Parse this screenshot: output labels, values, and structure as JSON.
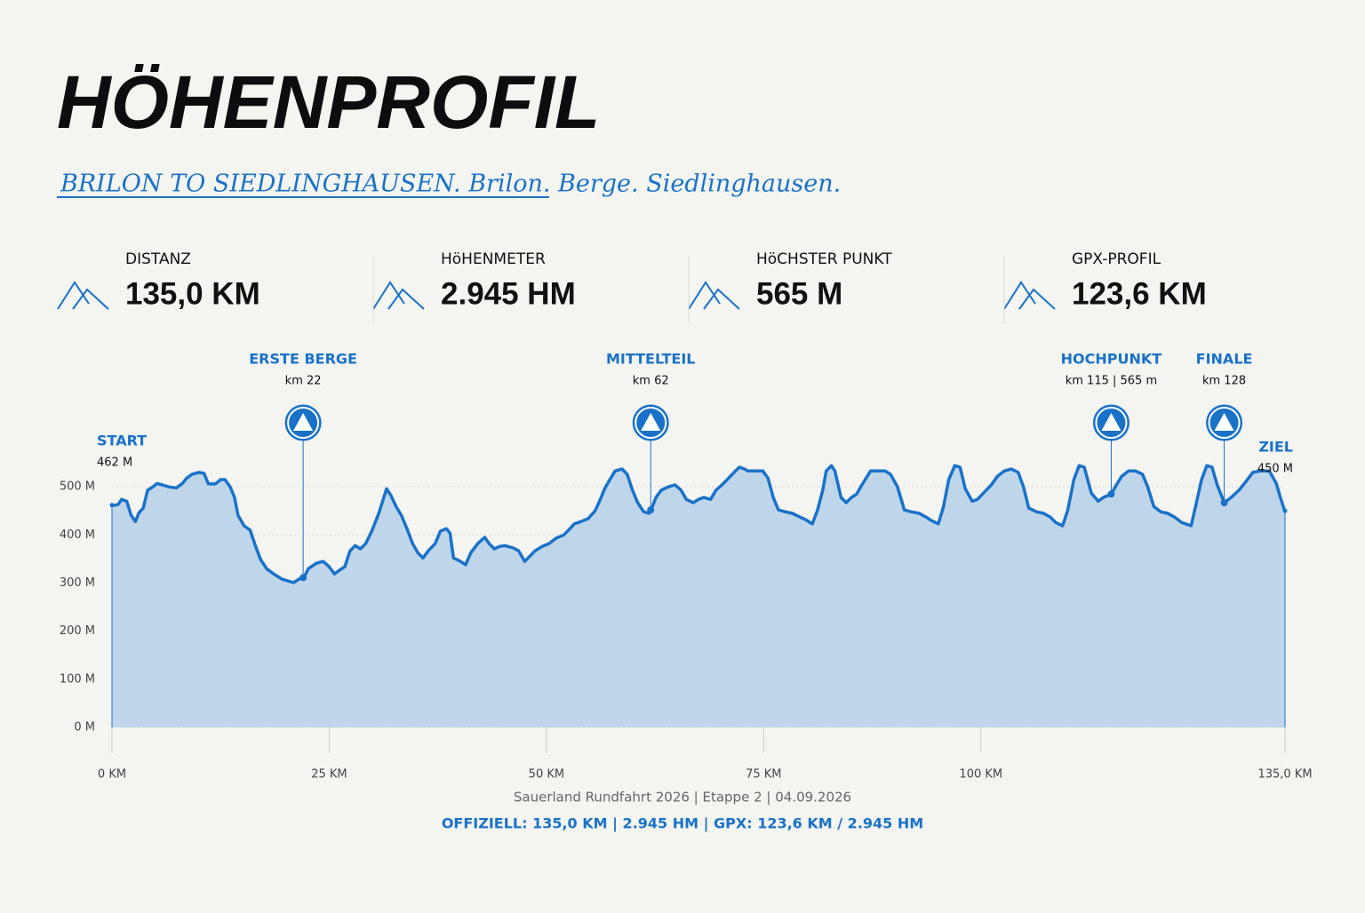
{
  "header": {
    "title": "HÖHENPROFIL",
    "subtitle": "BRILON TO SIEDLINGHAUSEN. Brilon. Berge. Siedlinghausen."
  },
  "stats": [
    {
      "label": "DISTANZ",
      "value": "135,0 KM"
    },
    {
      "label": "HöHENMETER",
      "value": "2.945 HM"
    },
    {
      "label": "HöCHSTER PUNKT",
      "value": "565 M"
    },
    {
      "label": "GPX-PROFIL",
      "value": "123,6 KM"
    }
  ],
  "chart_data": {
    "type": "area",
    "color": "#1a72c8",
    "fill": "#bfd6ea",
    "grid": true,
    "x": [
      0,
      0.7,
      1.1,
      1.7,
      2.2,
      2.7,
      3.1,
      3.6,
      4.1,
      4.7,
      5.2,
      5.8,
      6.5,
      7.4,
      8.1,
      8.6,
      9.2,
      10.0,
      10.6,
      11.1,
      11.9,
      12.5,
      13.0,
      13.6,
      14.1,
      14.5,
      15.2,
      15.9,
      16.5,
      17.1,
      17.8,
      18.6,
      19.6,
      20.9,
      21.5,
      22.1,
      22.6,
      23.5,
      24.3,
      25.0,
      25.6,
      26.2,
      26.8,
      27.4,
      28.0,
      28.6,
      29.2,
      29.9,
      30.7,
      31.6,
      32.1,
      32.7,
      33.3,
      34.0,
      34.6,
      35.2,
      35.8,
      36.4,
      37.2,
      37.8,
      38.5,
      38.9,
      39.3,
      40.1,
      40.7,
      41.3,
      42.1,
      42.9,
      43.4,
      44.0,
      44.6,
      45.2,
      46.2,
      46.8,
      47.5,
      48.1,
      48.7,
      49.5,
      50.3,
      51.1,
      52.0,
      52.6,
      53.2,
      54.0,
      54.8,
      55.6,
      56.2,
      56.7,
      57.3,
      57.9,
      58.7,
      59.3,
      59.9,
      60.5,
      61.2,
      61.8,
      62.2,
      62.6,
      63.2,
      64.0,
      64.8,
      65.5,
      66.1,
      66.9,
      67.5,
      68.1,
      68.9,
      69.5,
      70.2,
      70.8,
      71.6,
      72.2,
      72.8,
      73.2,
      74.0,
      74.9,
      75.5,
      76.1,
      76.7,
      77.5,
      78.3,
      79.2,
      79.8,
      80.6,
      81.2,
      81.8,
      82.2,
      82.8,
      83.2,
      83.9,
      84.5,
      85.1,
      85.7,
      86.3,
      87.3,
      88.4,
      89.0,
      89.6,
      90.4,
      91.2,
      92.0,
      92.9,
      93.7,
      94.3,
      95.1,
      95.7,
      96.3,
      97.0,
      97.6,
      98.2,
      99.0,
      99.6,
      100.4,
      101.2,
      101.9,
      102.7,
      103.5,
      104.3,
      104.9,
      105.5,
      106.4,
      107.2,
      108.0,
      108.6,
      109.4,
      110.0,
      110.7,
      111.3,
      111.9,
      112.7,
      113.5,
      114.1,
      115.0,
      115.6,
      116.2,
      117.0,
      117.8,
      118.6,
      119.2,
      119.9,
      120.7,
      121.5,
      122.3,
      123.1,
      124.2,
      124.8,
      125.4,
      126.0,
      126.6,
      127.2,
      128.0,
      128.8,
      129.7,
      130.5,
      131.3,
      132.1,
      133.2,
      134.0,
      134.4,
      135.0
    ],
    "values": [
      461,
      463,
      474,
      470,
      441,
      428,
      446,
      456,
      493,
      500,
      507,
      504,
      500,
      498,
      507,
      518,
      526,
      530,
      528,
      506,
      506,
      515,
      515,
      500,
      478,
      441,
      419,
      410,
      378,
      349,
      330,
      319,
      308,
      301,
      308,
      312,
      330,
      341,
      345,
      334,
      319,
      327,
      334,
      367,
      378,
      371,
      382,
      408,
      445,
      496,
      482,
      459,
      441,
      411,
      382,
      363,
      352,
      367,
      382,
      408,
      413,
      404,
      352,
      345,
      338,
      363,
      382,
      395,
      382,
      371,
      376,
      378,
      373,
      367,
      345,
      356,
      367,
      376,
      382,
      393,
      400,
      411,
      423,
      428,
      434,
      450,
      474,
      496,
      515,
      533,
      537,
      526,
      493,
      467,
      448,
      445,
      459,
      478,
      493,
      500,
      504,
      493,
      474,
      467,
      474,
      478,
      474,
      493,
      504,
      515,
      530,
      541,
      537,
      533,
      533,
      533,
      518,
      478,
      452,
      448,
      445,
      437,
      432,
      423,
      452,
      493,
      533,
      544,
      533,
      478,
      467,
      478,
      485,
      504,
      533,
      533,
      533,
      526,
      500,
      452,
      448,
      445,
      437,
      430,
      423,
      459,
      515,
      544,
      541,
      496,
      470,
      474,
      489,
      504,
      522,
      533,
      537,
      530,
      500,
      456,
      448,
      445,
      437,
      426,
      419,
      452,
      515,
      544,
      541,
      487,
      470,
      478,
      485,
      504,
      522,
      533,
      533,
      526,
      500,
      459,
      448,
      445,
      437,
      426,
      419,
      467,
      515,
      544,
      541,
      504,
      467,
      478,
      493,
      511,
      530,
      533,
      533,
      507,
      482,
      448
    ],
    "xlim": [
      0,
      135
    ],
    "xticks": [
      {
        "value": 0,
        "label": "0 KM"
      },
      {
        "value": 25,
        "label": "25 KM"
      },
      {
        "value": 50,
        "label": "50 KM"
      },
      {
        "value": 75,
        "label": "75 KM"
      },
      {
        "value": 100,
        "label": "100 KM"
      },
      {
        "value": 135,
        "label": "135,0 KM"
      }
    ],
    "ylim": [
      0,
      600
    ],
    "yticks": [
      {
        "value": 0,
        "label": "0 M"
      },
      {
        "value": 100,
        "label": "100 M"
      },
      {
        "value": 200,
        "label": "200 M"
      },
      {
        "value": 300,
        "label": "300 M"
      },
      {
        "value": 400,
        "label": "400 M"
      },
      {
        "value": 500,
        "label": "500 M"
      }
    ],
    "markers": [
      {
        "label": "ERSTE BERGE",
        "km": 22,
        "km_label": "km 22"
      },
      {
        "label": "MITTELTEIL",
        "km": 62,
        "km_label": "km 62"
      },
      {
        "label": "HOCHPUNKT",
        "km": 115,
        "km_label": "km 115 | 565 m"
      },
      {
        "label": "FINALE",
        "km": 128,
        "km_label": "km 128"
      }
    ],
    "endpoints": [
      {
        "label": "START",
        "elevation": 462,
        "elevation_label": "462 M"
      },
      {
        "label": "ZIEL",
        "elevation": 450,
        "elevation_label": "450 M"
      }
    ]
  },
  "footer": {
    "event": "Sauerland Rundfahrt 2026 | Etappe 2 | 04.09.2026",
    "official": "OFFIZIELL: 135,0 KM | 2.945 HM | GPX: 123,6 KM / 2.945 HM"
  }
}
